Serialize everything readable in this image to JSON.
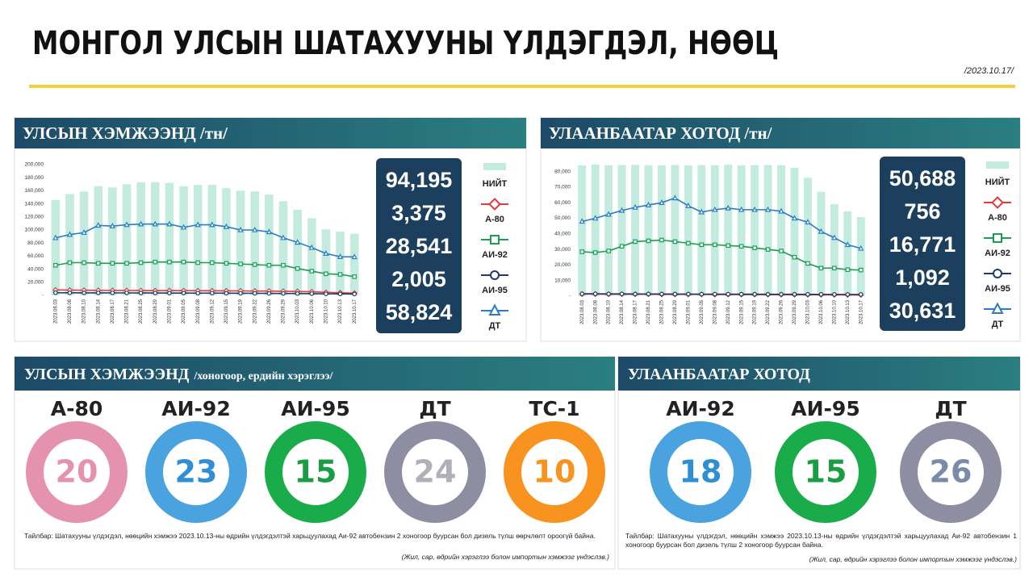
{
  "title": "МОНГОЛ УЛСЫН ШАТАХУУНЫ ҮЛДЭГДЭЛ, НӨӨЦ",
  "date": "/2023.10.17/",
  "chart_data": [
    {
      "type": "combo",
      "title": "УЛСЫН ХЭМЖЭЭНД /тн/",
      "categories": [
        "2023.08.03",
        "2023.08.08",
        "2023.08.10",
        "2023.08.14",
        "2023.08.17",
        "2023.08.21",
        "2023.08.25",
        "2023.08.29",
        "2023.09.01",
        "2023.09.05",
        "2023.09.08",
        "2023.09.12",
        "2023.09.15",
        "2023.09.19",
        "2023.09.22",
        "2023.09.26",
        "2023.09.29",
        "2023.10.03",
        "2023.10.06",
        "2023.10.10",
        "2023.10.13",
        "2023.10.17"
      ],
      "ylim": [
        0,
        200000
      ],
      "yticks": [
        {
          "value": 0,
          "label": "-"
        },
        {
          "value": 20000,
          "label": "20,000"
        },
        {
          "value": 40000,
          "label": "40,000"
        },
        {
          "value": 60000,
          "label": "60,000"
        },
        {
          "value": 80000,
          "label": "80,000"
        },
        {
          "value": 100000,
          "label": "100,000"
        },
        {
          "value": 120000,
          "label": "120,000"
        },
        {
          "value": 140000,
          "label": "140,000"
        },
        {
          "value": 160000,
          "label": "160,000"
        },
        {
          "value": 180000,
          "label": "180,000"
        },
        {
          "value": 200000,
          "label": "200,000"
        }
      ],
      "grid": false,
      "legend": "right",
      "series": [
        {
          "name": "НИЙТ",
          "type": "bar",
          "color": "#c3ebdf",
          "values": [
            146000,
            155000,
            159000,
            167000,
            165000,
            170000,
            173000,
            173000,
            172000,
            167000,
            169000,
            169000,
            164000,
            160000,
            159000,
            154000,
            144000,
            131000,
            118000,
            101000,
            97500,
            94195
          ],
          "value_labels": [
            null,
            null,
            null,
            null,
            null,
            null,
            null,
            null,
            null,
            null,
            null,
            null,
            null,
            null,
            null,
            null,
            null,
            null,
            null,
            null,
            null,
            "94,195"
          ]
        },
        {
          "name": "А-80",
          "type": "line",
          "marker": "diamond",
          "color": "#e0393e",
          "values": [
            8200,
            8000,
            7800,
            7600,
            7500,
            7400,
            7300,
            7200,
            7300,
            7200,
            7100,
            7000,
            6900,
            6800,
            6600,
            6500,
            6300,
            6000,
            5500,
            4500,
            4000,
            3375
          ],
          "value_labels": [
            null,
            null,
            null,
            null,
            null,
            null,
            null,
            null,
            null,
            null,
            null,
            null,
            null,
            null,
            null,
            null,
            null,
            null,
            null,
            null,
            null,
            "3,375"
          ]
        },
        {
          "name": "АИ-92",
          "type": "line",
          "marker": "square",
          "color": "#1a9e50",
          "values": [
            46000,
            50000,
            50000,
            49000,
            49000,
            49000,
            50000,
            51000,
            51000,
            51000,
            50000,
            50000,
            49000,
            48000,
            47000,
            46000,
            46000,
            41000,
            37000,
            33000,
            32000,
            28541
          ],
          "value_labels": [
            null,
            null,
            null,
            null,
            null,
            null,
            null,
            null,
            null,
            null,
            null,
            null,
            null,
            null,
            null,
            null,
            null,
            null,
            null,
            null,
            null,
            "28,541"
          ]
        },
        {
          "name": "АИ-95",
          "type": "line",
          "marker": "circle",
          "color": "#1f3a68",
          "values": [
            4000,
            3900,
            3800,
            3800,
            3700,
            3700,
            3600,
            3600,
            3500,
            3500,
            3400,
            3400,
            3300,
            3200,
            3100,
            3000,
            2900,
            2800,
            2600,
            2300,
            2200,
            2005
          ],
          "value_labels": [
            null,
            null,
            null,
            null,
            null,
            null,
            null,
            null,
            null,
            null,
            null,
            null,
            null,
            null,
            null,
            null,
            null,
            null,
            null,
            null,
            null,
            "2,005"
          ]
        },
        {
          "name": "ДТ",
          "type": "line",
          "marker": "triangle",
          "color": "#2b7cc2",
          "values": [
            88000,
            93000,
            96000,
            107000,
            106000,
            108000,
            109000,
            109000,
            109000,
            104000,
            108000,
            108000,
            105000,
            100000,
            100000,
            97000,
            88000,
            81000,
            73000,
            64000,
            59000,
            58824
          ],
          "value_labels": [
            null,
            null,
            null,
            null,
            null,
            null,
            null,
            null,
            null,
            null,
            null,
            null,
            null,
            null,
            null,
            null,
            null,
            null,
            null,
            null,
            null,
            "58,824"
          ]
        }
      ]
    },
    {
      "type": "combo",
      "title": "УЛААНБААТАР ХОТОД /тн/",
      "categories": [
        "2023.08.03",
        "2023.08.08",
        "2023.08.10",
        "2023.08.14",
        "2023.08.17",
        "2023.08.21",
        "2023.08.25",
        "2023.08.29",
        "2023.09.01",
        "2023.09.05",
        "2023.09.08",
        "2023.09.12",
        "2023.09.15",
        "2023.09.19",
        "2023.09.22",
        "2023.09.26",
        "2023.09.29",
        "2023.10.03",
        "2023.10.06",
        "2023.10.10",
        "2023.10.13",
        "2023.10.17"
      ],
      "ylim": [
        0,
        86000
      ],
      "yticks": [
        {
          "value": 0,
          "label": "-"
        },
        {
          "value": 10000,
          "label": "10,000"
        },
        {
          "value": 20000,
          "label": "20,000"
        },
        {
          "value": 30000,
          "label": "30,000"
        },
        {
          "value": 40000,
          "label": "40,000"
        },
        {
          "value": 50000,
          "label": "50,000"
        },
        {
          "value": 60000,
          "label": "60,000"
        },
        {
          "value": 70000,
          "label": "70,000"
        },
        {
          "value": 80000,
          "label": "80,000"
        }
      ],
      "grid": false,
      "legend": "right",
      "series": [
        {
          "name": "НИЙТ",
          "type": "bar",
          "color": "#c3ebdf",
          "values": [
            84000,
            84500,
            84000,
            84200,
            84300,
            84100,
            84000,
            84200,
            84000,
            84100,
            84000,
            84300,
            84000,
            84100,
            84200,
            84000,
            82500,
            76000,
            67000,
            59000,
            54500,
            50688
          ],
          "value_labels": [
            null,
            null,
            null,
            null,
            null,
            null,
            null,
            null,
            null,
            null,
            null,
            null,
            null,
            null,
            null,
            null,
            null,
            null,
            null,
            null,
            null,
            "50,688"
          ]
        },
        {
          "name": "А-80",
          "type": "line",
          "marker": "diamond",
          "color": "#e0393e",
          "values": [
            1300,
            1300,
            1200,
            1200,
            1200,
            1200,
            1100,
            1100,
            1100,
            1100,
            1000,
            1000,
            1000,
            1000,
            950,
            950,
            900,
            900,
            850,
            800,
            780,
            756
          ],
          "value_labels": [
            null,
            null,
            null,
            null,
            null,
            null,
            null,
            null,
            null,
            null,
            null,
            null,
            null,
            null,
            null,
            null,
            null,
            null,
            null,
            null,
            null,
            "756"
          ]
        },
        {
          "name": "АИ-92",
          "type": "line",
          "marker": "square",
          "color": "#1a9e50",
          "values": [
            28500,
            28000,
            29000,
            32000,
            35000,
            35500,
            36000,
            35000,
            34000,
            33000,
            33000,
            32500,
            32000,
            31000,
            30000,
            29000,
            25000,
            21000,
            18000,
            18000,
            17000,
            16771
          ],
          "value_labels": [
            null,
            null,
            null,
            null,
            null,
            null,
            null,
            null,
            null,
            null,
            null,
            null,
            null,
            null,
            null,
            null,
            null,
            null,
            null,
            null,
            null,
            "16,771"
          ]
        },
        {
          "name": "АИ-95",
          "type": "line",
          "marker": "circle",
          "color": "#1f3a68",
          "values": [
            1500,
            1500,
            1450,
            1450,
            1400,
            1400,
            1400,
            1350,
            1350,
            1300,
            1300,
            1300,
            1250,
            1250,
            1200,
            1200,
            1200,
            1150,
            1150,
            1100,
            1100,
            1092
          ],
          "value_labels": [
            null,
            null,
            null,
            null,
            null,
            null,
            null,
            null,
            null,
            null,
            null,
            null,
            null,
            null,
            null,
            null,
            null,
            null,
            null,
            null,
            null,
            "1,092"
          ]
        },
        {
          "name": "ДТ",
          "type": "line",
          "marker": "triangle",
          "color": "#2b7cc2",
          "values": [
            48000,
            50000,
            52500,
            55000,
            57000,
            58500,
            60000,
            63000,
            58000,
            54000,
            55500,
            56500,
            55500,
            55500,
            55500,
            54500,
            50000,
            47500,
            41500,
            37500,
            33000,
            30631
          ],
          "value_labels": [
            null,
            null,
            null,
            null,
            null,
            null,
            null,
            null,
            null,
            null,
            null,
            null,
            null,
            null,
            null,
            null,
            null,
            null,
            null,
            null,
            null,
            "30,631"
          ]
        }
      ]
    }
  ],
  "days": [
    {
      "title": "УЛСЫН ХЭМЖЭЭНД",
      "subtitle": "/хоногоор, ердийн хэрэглээ/",
      "items": [
        {
          "name": "А-80",
          "value": 20,
          "color": "#e592ae",
          "text_color": "#e592ae"
        },
        {
          "name": "АИ-92",
          "value": 23,
          "color": "#4aa3df",
          "text_color": "#2e8fd4"
        },
        {
          "name": "АИ-95",
          "value": 15,
          "color": "#1aab4b",
          "text_color": "#1a9e45"
        },
        {
          "name": "ДТ",
          "value": 24,
          "color": "#8e8ea2",
          "text_color": "#b0b0b8"
        },
        {
          "name": "ТС-1",
          "value": 10,
          "color": "#f7931e",
          "text_color": "#f7931e"
        }
      ],
      "note": "Тайлбар: Шатахууны үлдэгдэл, нөөцийн хэмжээ 2023.10.13-ны өдрийн үлдэгдэлтэй харьцуулахад Аи-92 автобензин 2 хоногоор буурсан бол дизель түлш өөрчлөлт ороогүй байна.",
      "source": "(Жил, сар, өдрийн хэрэглээ болон импортын хэмжээг үндэслэв.)"
    },
    {
      "title": "УЛААНБААТАР ХОТОД",
      "items": [
        {
          "name": "АИ-92",
          "value": 18,
          "color": "#4aa3df",
          "text_color": "#2e8fd4"
        },
        {
          "name": "АИ-95",
          "value": 15,
          "color": "#1aab4b",
          "text_color": "#1a9e45"
        },
        {
          "name": "ДТ",
          "value": 26,
          "color": "#8e8ea2",
          "text_color": "#7a8ba8"
        }
      ],
      "note": "Тайлбар: Шатахууны үлдэгдэл, нөөцийн хэмжээ 2023.10.13-ны өдрийн үлдэгдэлтэй харьцуулахад Аи-92 автобензин 1 хоногоор буурсан бол дизель түлш 2 хоногоор буурсан байна.",
      "source": "(Жил, сар, өдрийн хэрэглээ болон импортын хэмжээг үндэслэв.)"
    }
  ]
}
